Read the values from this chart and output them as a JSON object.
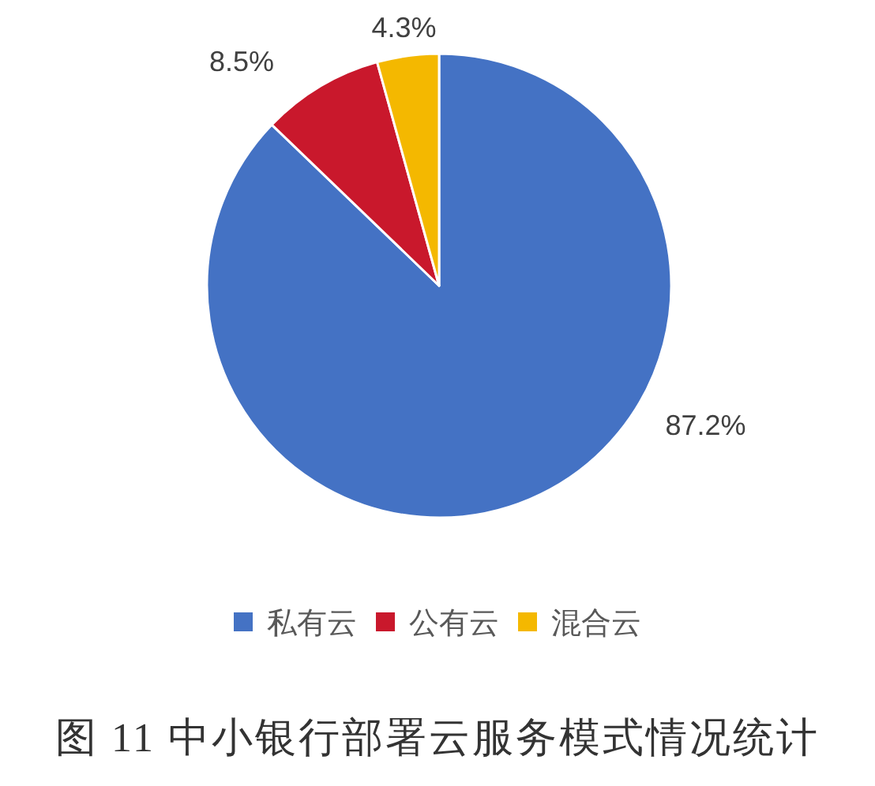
{
  "chart_data": {
    "type": "pie",
    "title": "图 11 中小银行部署云服务模式情况统计",
    "categories": [
      "私有云",
      "公有云",
      "混合云"
    ],
    "values": [
      87.2,
      8.5,
      4.3
    ],
    "colors": [
      "#4472c4",
      "#c9182c",
      "#f4b800"
    ],
    "value_labels": [
      "87.2%",
      "8.5%",
      "4.3%"
    ],
    "legend": "bottom"
  }
}
